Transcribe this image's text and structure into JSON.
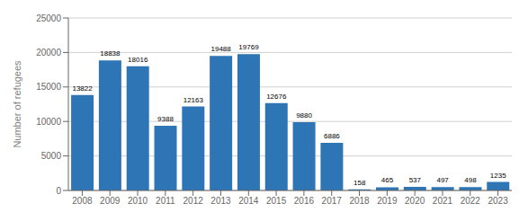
{
  "chart_data": {
    "type": "bar",
    "categories": [
      "2008",
      "2009",
      "2010",
      "2011",
      "2012",
      "2013",
      "2014",
      "2015",
      "2016",
      "2017",
      "2018",
      "2019",
      "2020",
      "2021",
      "2022",
      "2023"
    ],
    "values": [
      13822,
      18838,
      18016,
      9388,
      12163,
      19488,
      19769,
      12676,
      9880,
      6886,
      158,
      465,
      537,
      497,
      498,
      1235
    ],
    "color": "#2E75B6",
    "ylabel": "Number of refugees",
    "ylim": [
      0,
      25000
    ],
    "yticks": [
      0,
      5000,
      10000,
      15000,
      20000,
      25000
    ],
    "grid": true,
    "data_labels": true
  }
}
